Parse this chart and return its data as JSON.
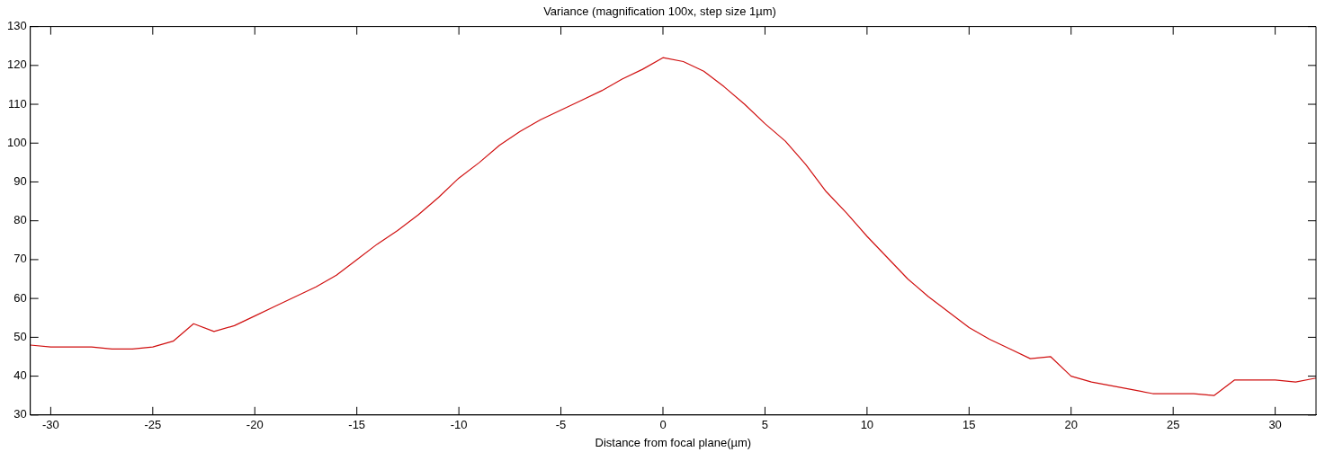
{
  "chart_data": {
    "type": "line",
    "title": "Variance (magnification 100x, step size 1µm)",
    "xlabel": "Distance from focal plane(µm)",
    "x": [
      -31,
      -30,
      -29,
      -28,
      -27,
      -26,
      -25,
      -24,
      -23,
      -22,
      -21,
      -20,
      -19,
      -18,
      -17,
      -16,
      -15,
      -14,
      -13,
      -12,
      -11,
      -10,
      -9,
      -8,
      -7,
      -6,
      -5,
      -4,
      -3,
      -2,
      -1,
      0,
      1,
      2,
      3,
      4,
      5,
      6,
      7,
      8,
      9,
      10,
      11,
      12,
      13,
      14,
      15,
      16,
      17,
      18,
      19,
      20,
      21,
      22,
      23,
      24,
      25,
      26,
      27,
      28,
      29,
      30,
      31,
      32
    ],
    "series": [
      {
        "color": "#d01010",
        "values": [
          48,
          47.5,
          47.5,
          47.5,
          47,
          47,
          47.5,
          49,
          53.5,
          51.5,
          53,
          55.5,
          58,
          60.5,
          63,
          66,
          70,
          74,
          77.5,
          81.5,
          86,
          91,
          95,
          99.5,
          103,
          106,
          108.5,
          111,
          113.5,
          116.5,
          119,
          122,
          121,
          118.5,
          114.5,
          110,
          105,
          100.5,
          94.5,
          87.5,
          82,
          76,
          70.5,
          65,
          60.5,
          56.5,
          52.5,
          49.5,
          47,
          44.5,
          45,
          40,
          38.5,
          37.5,
          36.5,
          35.5,
          35.5,
          35.5,
          35,
          39,
          39,
          39,
          38.5,
          39.5
        ]
      }
    ],
    "xlim": [
      -31,
      32
    ],
    "xticks": [
      -30,
      -25,
      -20,
      -15,
      -10,
      -5,
      0,
      5,
      10,
      15,
      20,
      25,
      30
    ],
    "ylim": [
      30,
      130
    ],
    "yticks": [
      30,
      40,
      50,
      60,
      70,
      80,
      90,
      100,
      110,
      120,
      130
    ],
    "grid": false,
    "legend": false,
    "marker": "none",
    "line_style": "solid"
  }
}
